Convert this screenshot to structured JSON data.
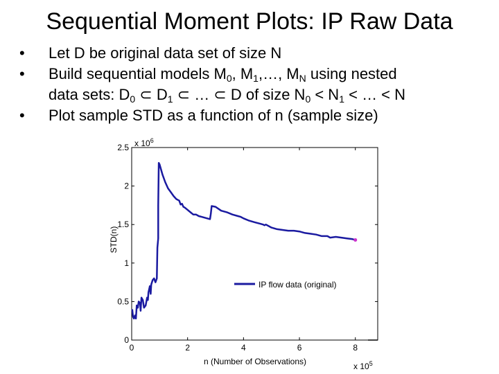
{
  "slide": {
    "title": "Sequential Moment Plots: IP Raw Data",
    "bullet_char": "•",
    "bullets": {
      "b1": {
        "text": "Let D be original data set of size N"
      },
      "b2": {
        "pre": "Build sequential models M",
        "s1": "0",
        "mid1": ", M",
        "s2": "1",
        "mid2": ",…, M",
        "s3": "N",
        "post": " using nested",
        "line2_pre": "data sets: D",
        "s4": "0",
        "line2_mid1": " ⊂ D",
        "s5": "1",
        "line2_mid2": " ⊂ … ⊂ D of size N",
        "s6": "0",
        "line2_mid3": " < N",
        "s7": "1",
        "line2_post": " < … < N"
      },
      "b3": {
        "text": "Plot sample STD as a function of n (sample size)"
      }
    }
  },
  "chart_data": {
    "type": "line",
    "title": "",
    "xlabel": "n (Number of Observations)",
    "ylabel": "STD(n)",
    "x_multiplier": "x 10",
    "x_multiplier_exp": "5",
    "y_multiplier": "x 10",
    "y_multiplier_exp": "6",
    "xlim": [
      0,
      8.8
    ],
    "ylim": [
      0,
      2.5
    ],
    "xticks": [
      "0",
      "2",
      "4",
      "6",
      "8"
    ],
    "xtick_values": [
      0,
      2,
      4,
      6,
      8
    ],
    "yticks": [
      "0",
      "0.5",
      "1",
      "1.5",
      "2",
      "2.5"
    ],
    "ytick_values": [
      0,
      0.5,
      1,
      1.5,
      2,
      2.5
    ],
    "grid": false,
    "legend_position": "lower-right",
    "series": [
      {
        "name": "IP flow data (original)",
        "color": "#1a1aa0",
        "endpoint_color": "#cc33cc",
        "x": [
          0.02,
          0.05,
          0.08,
          0.12,
          0.15,
          0.18,
          0.22,
          0.25,
          0.3,
          0.32,
          0.35,
          0.4,
          0.44,
          0.5,
          0.55,
          0.58,
          0.6,
          0.65,
          0.68,
          0.7,
          0.75,
          0.8,
          0.85,
          0.9,
          0.92,
          0.95,
          0.95,
          0.97,
          1.0,
          1.1,
          1.2,
          1.3,
          1.4,
          1.5,
          1.6,
          1.7,
          1.75,
          1.8,
          1.85,
          1.9,
          2.0,
          2.1,
          2.2,
          2.3,
          2.4,
          2.5,
          2.6,
          2.7,
          2.8,
          2.83,
          2.86,
          3.0,
          3.2,
          3.4,
          3.6,
          3.8,
          3.9,
          4.0,
          4.2,
          4.4,
          4.6,
          4.7,
          4.75,
          4.8,
          5.0,
          5.2,
          5.4,
          5.6,
          5.8,
          6.0,
          6.2,
          6.4,
          6.6,
          6.8,
          7.0,
          7.05,
          7.1,
          7.3,
          7.5,
          7.7,
          7.9,
          8.0
        ],
        "y": [
          0.4,
          0.3,
          0.28,
          0.32,
          0.28,
          0.45,
          0.42,
          0.5,
          0.48,
          0.38,
          0.55,
          0.52,
          0.42,
          0.45,
          0.55,
          0.52,
          0.62,
          0.7,
          0.6,
          0.72,
          0.78,
          0.8,
          0.75,
          0.8,
          1.2,
          1.32,
          1.75,
          2.3,
          2.28,
          2.15,
          2.05,
          1.97,
          1.92,
          1.87,
          1.83,
          1.81,
          1.76,
          1.77,
          1.73,
          1.72,
          1.69,
          1.66,
          1.63,
          1.63,
          1.61,
          1.6,
          1.59,
          1.58,
          1.57,
          1.64,
          1.74,
          1.73,
          1.68,
          1.66,
          1.63,
          1.61,
          1.6,
          1.58,
          1.55,
          1.53,
          1.51,
          1.5,
          1.49,
          1.5,
          1.46,
          1.44,
          1.43,
          1.42,
          1.42,
          1.41,
          1.39,
          1.38,
          1.37,
          1.35,
          1.35,
          1.34,
          1.33,
          1.34,
          1.33,
          1.32,
          1.31,
          1.3
        ]
      }
    ]
  }
}
